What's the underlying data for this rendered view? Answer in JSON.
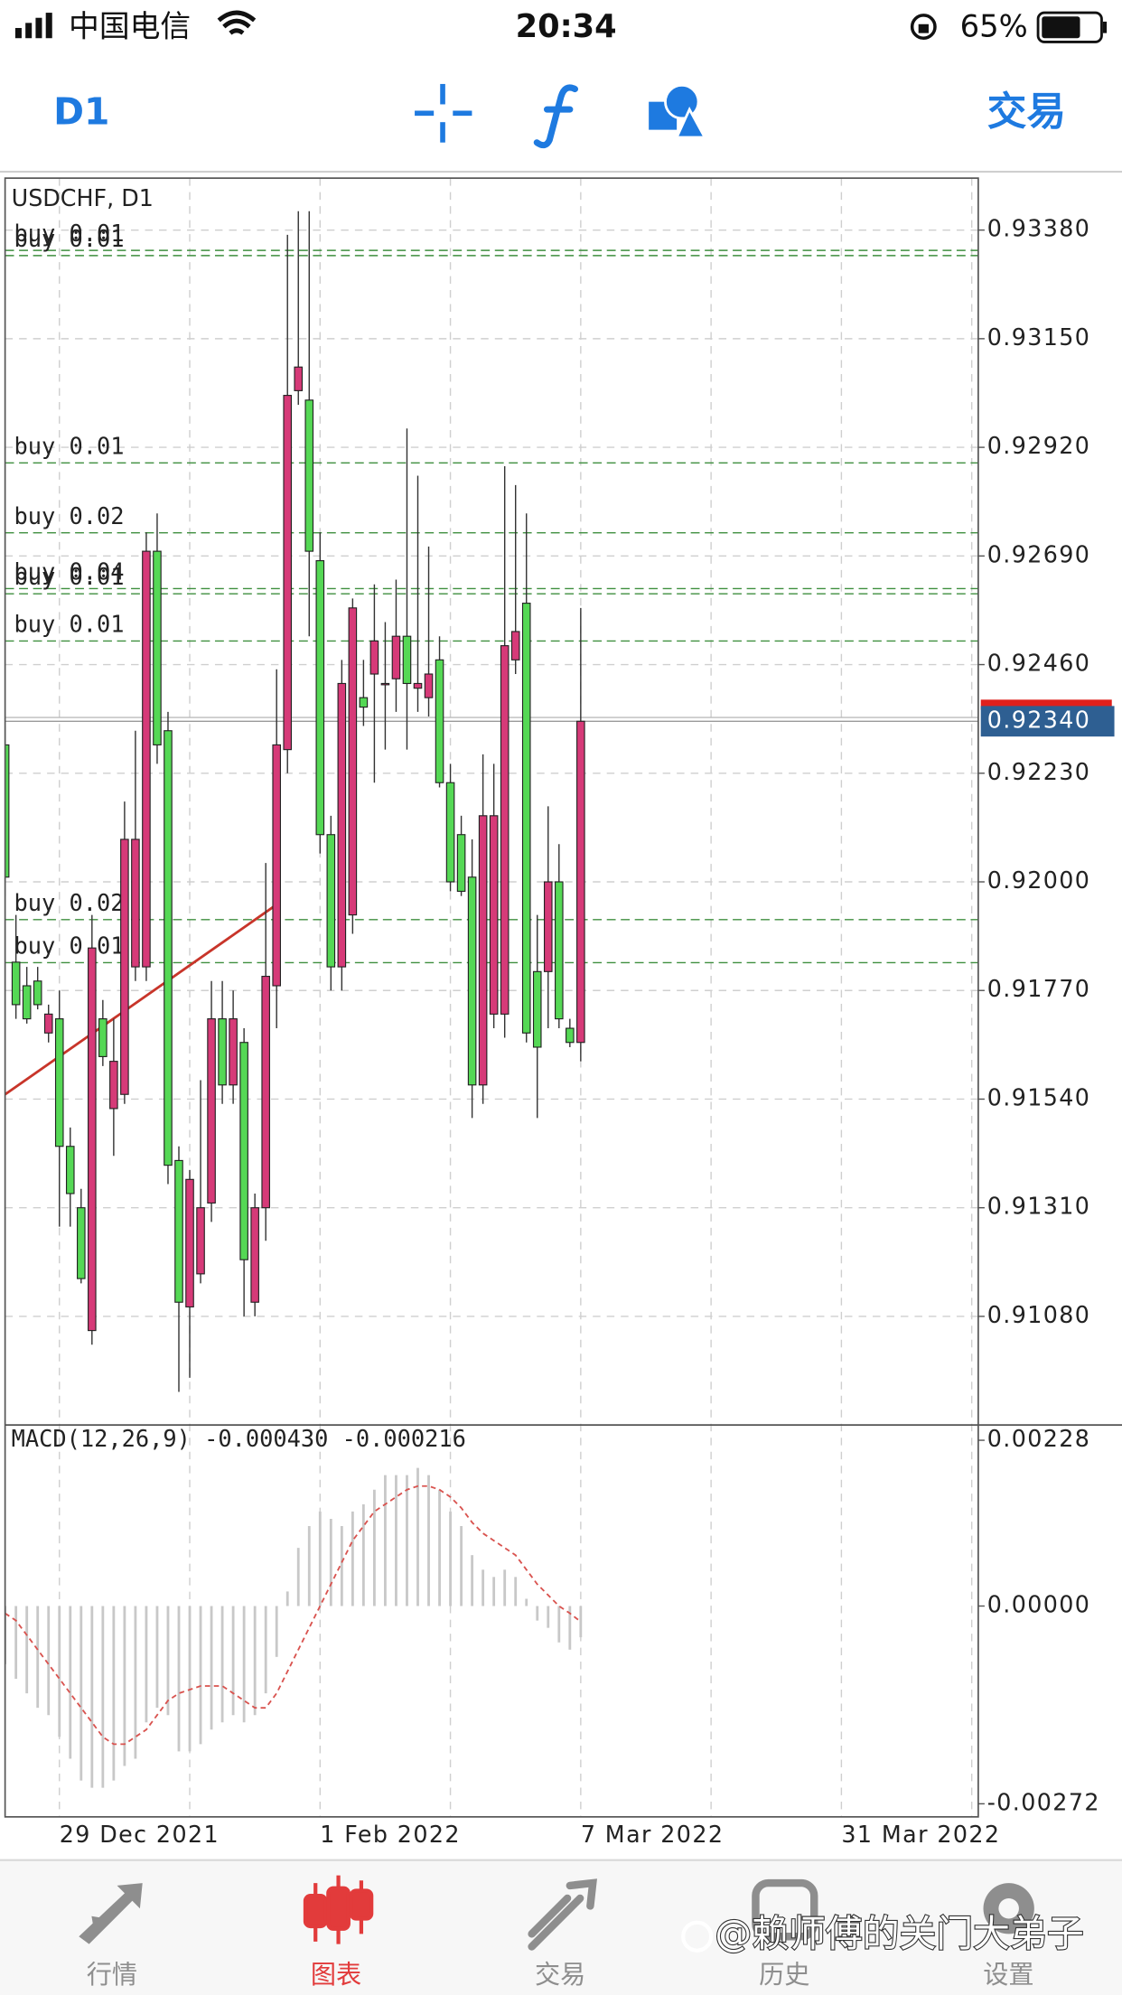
{
  "status_bar": {
    "carrier": "中国电信",
    "time": "20:34",
    "battery": "65%"
  },
  "toolbar": {
    "timeframe": "D1",
    "trade": "交易"
  },
  "chart_data": {
    "type": "candlestick",
    "title": "USDCHF, D1",
    "x": [
      0,
      1,
      2,
      3,
      4,
      5,
      6,
      7,
      8,
      9,
      10,
      11,
      12,
      13,
      14,
      15,
      16,
      17,
      18,
      19,
      20,
      21,
      22,
      23,
      24,
      25,
      26,
      27,
      28,
      29,
      30,
      31,
      32,
      33,
      34,
      35,
      36,
      37,
      38,
      39,
      40,
      41,
      42,
      43,
      44,
      45,
      46,
      47,
      48,
      49,
      50,
      51,
      52,
      53
    ],
    "xlim": [
      0,
      89.6
    ],
    "xticks": [
      {
        "value": 5,
        "label": "29 Dec 2021"
      },
      {
        "value": 29,
        "label": "1 Feb 2022"
      },
      {
        "value": 53,
        "label": "7 Mar 2022"
      },
      {
        "value": 77,
        "label": "31 Mar 2022"
      }
    ],
    "open": [
      0.9229,
      0.9183,
      0.9178,
      0.9179,
      0.9168,
      0.9171,
      0.9144,
      0.9131,
      0.9105,
      0.9171,
      0.9152,
      0.9155,
      0.9182,
      0.9182,
      0.927,
      0.9232,
      0.9141,
      0.911,
      0.9117,
      0.9132,
      0.9171,
      0.9157,
      0.9166,
      0.9111,
      0.9131,
      0.9178,
      0.9228,
      0.9304,
      0.9302,
      0.9268,
      0.921,
      0.9182,
      0.9193,
      0.9239,
      0.9244,
      0.9242,
      0.9243,
      0.9252,
      0.9241,
      0.9239,
      0.9247,
      0.9221,
      0.921,
      0.9201,
      0.9157,
      0.9172,
      0.9172,
      0.9247,
      0.9259,
      0.9181,
      0.9181,
      0.92,
      0.9169,
      0.9166
    ],
    "high": [
      0.9233,
      0.9193,
      0.9182,
      0.9182,
      0.9174,
      0.9177,
      0.9148,
      0.9135,
      0.9193,
      0.9175,
      0.9171,
      0.9217,
      0.9232,
      0.9274,
      0.9278,
      0.9236,
      0.9144,
      0.9139,
      0.9158,
      0.9179,
      0.9179,
      0.9177,
      0.9169,
      0.9134,
      0.9204,
      0.9245,
      0.9337,
      0.9342,
      0.9342,
      0.9274,
      0.9214,
      0.9247,
      0.926,
      0.9247,
      0.9263,
      0.9255,
      0.9264,
      0.9296,
      0.9286,
      0.9271,
      0.9252,
      0.9225,
      0.9214,
      0.9209,
      0.9227,
      0.9225,
      0.9288,
      0.9284,
      0.9278,
      0.9193,
      0.9216,
      0.9208,
      0.9171,
      0.9258
    ],
    "low": [
      0.9197,
      0.9171,
      0.917,
      0.9173,
      0.9166,
      0.9127,
      0.9127,
      0.9115,
      0.9102,
      0.9161,
      0.9142,
      0.9153,
      0.9179,
      0.9179,
      0.9225,
      0.9136,
      0.9092,
      0.9095,
      0.9115,
      0.9128,
      0.9153,
      0.9153,
      0.9108,
      0.9108,
      0.9124,
      0.9169,
      0.9223,
      0.9301,
      0.9252,
      0.9206,
      0.9177,
      0.9177,
      0.9189,
      0.9233,
      0.9221,
      0.9228,
      0.9236,
      0.9228,
      0.9236,
      0.9235,
      0.922,
      0.9198,
      0.9197,
      0.915,
      0.9153,
      0.9169,
      0.9167,
      0.9244,
      0.9166,
      0.915,
      0.9169,
      0.9169,
      0.9165,
      0.9162
    ],
    "close": [
      0.9201,
      0.9174,
      0.9171,
      0.9174,
      0.9172,
      0.9144,
      0.9134,
      0.9116,
      0.9186,
      0.9163,
      0.9162,
      0.9209,
      0.9209,
      0.927,
      0.9229,
      0.914,
      0.9111,
      0.9137,
      0.9131,
      0.9171,
      0.9157,
      0.9171,
      0.912,
      0.9131,
      0.918,
      0.9229,
      0.9303,
      0.9309,
      0.927,
      0.921,
      0.9182,
      0.9242,
      0.9258,
      0.9237,
      0.9251,
      0.9242,
      0.9252,
      0.9242,
      0.9242,
      0.9244,
      0.9221,
      0.92,
      0.9198,
      0.9157,
      0.9214,
      0.9214,
      0.925,
      0.9253,
      0.9168,
      0.9165,
      0.92,
      0.9171,
      0.9166,
      0.9234
    ],
    "up_color": "#d63a78",
    "down_color": "#55d855",
    "wick_color": "#333333",
    "ylim": [
      0.9085,
      0.9349
    ],
    "yticks": [
      {
        "value": 0.9338,
        "label": "0.93380"
      },
      {
        "value": 0.9315,
        "label": "0.93150"
      },
      {
        "value": 0.9292,
        "label": "0.92920"
      },
      {
        "value": 0.9269,
        "label": "0.92690"
      },
      {
        "value": 0.9246,
        "label": "0.92460"
      },
      {
        "value": 0.9223,
        "label": "0.92230"
      },
      {
        "value": 0.92,
        "label": "0.92000"
      },
      {
        "value": 0.9177,
        "label": "0.91770"
      },
      {
        "value": 0.9154,
        "label": "0.91540"
      },
      {
        "value": 0.9131,
        "label": "0.91310"
      },
      {
        "value": 0.9108,
        "label": "0.91080"
      }
    ],
    "grid": true,
    "bid": {
      "value": 0.9234,
      "label": "0.92340"
    },
    "order_color": "#3f8f3f",
    "orders": [
      {
        "label": "buy 0.01",
        "value": 0.93337
      },
      {
        "label": "buy 0.01",
        "value": 0.93326
      },
      {
        "label": "buy 0.01",
        "value": 0.92887
      },
      {
        "label": "buy 0.02",
        "value": 0.92739
      },
      {
        "label": "buy 0.04",
        "value": 0.92621
      },
      {
        "label": "buy 0.01",
        "value": 0.9261
      },
      {
        "label": "buy 0.01",
        "value": 0.9251
      },
      {
        "label": "buy 0.02",
        "value": 0.9192
      },
      {
        "label": "buy 0.01",
        "value": 0.91829
      }
    ],
    "trendline": {
      "x": [
        0,
        24.7
      ],
      "values": [
        0.9155,
        0.91947
      ],
      "color": "#c8352a"
    },
    "macd": {
      "title": "MACD(12,26,9) -0.000430 -0.000216",
      "histogram": [
        -0.0008,
        -0.001,
        -0.0012,
        -0.0014,
        -0.0015,
        -0.0018,
        -0.0021,
        -0.0024,
        -0.0025,
        -0.0025,
        -0.0024,
        -0.0022,
        -0.0021,
        -0.0016,
        -0.0014,
        -0.0015,
        -0.002,
        -0.002,
        -0.0019,
        -0.0017,
        -0.0016,
        -0.0015,
        -0.0016,
        -0.0015,
        -0.0012,
        -0.0007,
        0.0002,
        0.0008,
        0.0011,
        0.0013,
        0.0012,
        0.0011,
        0.0013,
        0.0014,
        0.0016,
        0.0018,
        0.0018,
        0.0018,
        0.0019,
        0.0018,
        0.0016,
        0.0013,
        0.0011,
        0.0007,
        0.0005,
        0.0004,
        0.0005,
        0.0004,
        0.0001,
        -0.0002,
        -0.0003,
        -0.0005,
        -0.0006,
        -0.00043
      ],
      "signal": [
        -0.0001,
        -0.0002,
        -0.0004,
        -0.0006,
        -0.0008,
        -0.001,
        -0.0012,
        -0.0014,
        -0.0016,
        -0.0018,
        -0.0019,
        -0.0019,
        -0.0018,
        -0.0017,
        -0.0015,
        -0.0013,
        -0.0012,
        -0.00115,
        -0.0011,
        -0.0011,
        -0.0011,
        -0.0012,
        -0.0013,
        -0.0014,
        -0.0014,
        -0.0012,
        -0.0009,
        -0.0006,
        -0.0003,
        0,
        0.0003,
        0.0006,
        0.0009,
        0.0011,
        0.0013,
        0.0014,
        0.0015,
        0.0016,
        0.00165,
        0.00165,
        0.0016,
        0.0015,
        0.00135,
        0.00115,
        0.001,
        0.0009,
        0.0008,
        0.0007,
        0.0005,
        0.0003,
        0.00015,
        0,
        -0.0001,
        -0.000216
      ],
      "histogram_color": "#c8c8c8",
      "signal_color": "#d9534f",
      "ylim": [
        -0.0029,
        0.00249
      ],
      "yticks": [
        {
          "value": 0.00228,
          "label": "0.00228"
        },
        {
          "value": 0,
          "label": "0.00000"
        },
        {
          "value": -0.00272,
          "label": "-0.00272"
        }
      ]
    }
  },
  "tabs": [
    "行情",
    "图表",
    "交易",
    "历史",
    "设置"
  ],
  "active_tab": 1,
  "watermark": "@赖师傅的关门大弟子"
}
